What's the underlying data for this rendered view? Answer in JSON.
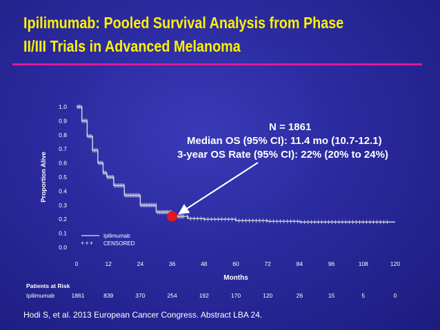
{
  "slide": {
    "title_line1": "Ipilimumab: Pooled Survival Analysis from Phase",
    "title_line2": "II/III Trials in Advanced Melanoma",
    "citation": "Hodi S, et al. 2013 European Cancer Congress. Abstract LBA 24."
  },
  "colors": {
    "title": "#fff200",
    "accent_rule": "#e0199b",
    "background": "#2a2a9e",
    "marker": "#e8141e",
    "curve": "#c8c8d8"
  },
  "annotation": {
    "line1": "N = 1861",
    "line2": "Median OS (95% CI): 11.4 mo (10.7-12.1)",
    "line3": "3-year OS Rate (95% CI): 22% (20% to 24%)"
  },
  "chart_data": {
    "type": "line",
    "xlabel": "Months",
    "ylabel": "Proportion Alive",
    "xlim": [
      0,
      120
    ],
    "ylim": [
      0,
      1.0
    ],
    "x_ticks": [
      "0",
      "12",
      "24",
      "36",
      "48",
      "60",
      "72",
      "84",
      "96",
      "108",
      "120"
    ],
    "y_ticks": [
      "0.0",
      "0.1",
      "0.2",
      "0.3",
      "0.4",
      "0.5",
      "0.6",
      "0.7",
      "0.8",
      "0.9",
      "1.0"
    ],
    "legend": {
      "position": "bottom-left",
      "entries": [
        "Ipilimumab",
        "CENSORED"
      ]
    },
    "series": [
      {
        "name": "Ipilimumab",
        "x": [
          0,
          2,
          4,
          6,
          8,
          10,
          11.4,
          14,
          18,
          24,
          30,
          36,
          42,
          48,
          60,
          72,
          84,
          96,
          108,
          120
        ],
        "y": [
          1.0,
          0.9,
          0.79,
          0.69,
          0.6,
          0.53,
          0.5,
          0.44,
          0.37,
          0.3,
          0.25,
          0.22,
          0.205,
          0.2,
          0.19,
          0.185,
          0.18,
          0.18,
          0.18,
          0.18
        ]
      }
    ],
    "highlight_point": {
      "x": 36,
      "y": 0.22
    },
    "risk_table": {
      "heading": "Patients at Risk",
      "row_label": "Ipilimumab",
      "times": [
        0,
        12,
        24,
        36,
        48,
        60,
        72,
        84,
        96,
        108,
        120
      ],
      "counts": [
        "1861",
        "839",
        "370",
        "254",
        "192",
        "170",
        "120",
        "26",
        "15",
        "5",
        "0"
      ]
    }
  }
}
